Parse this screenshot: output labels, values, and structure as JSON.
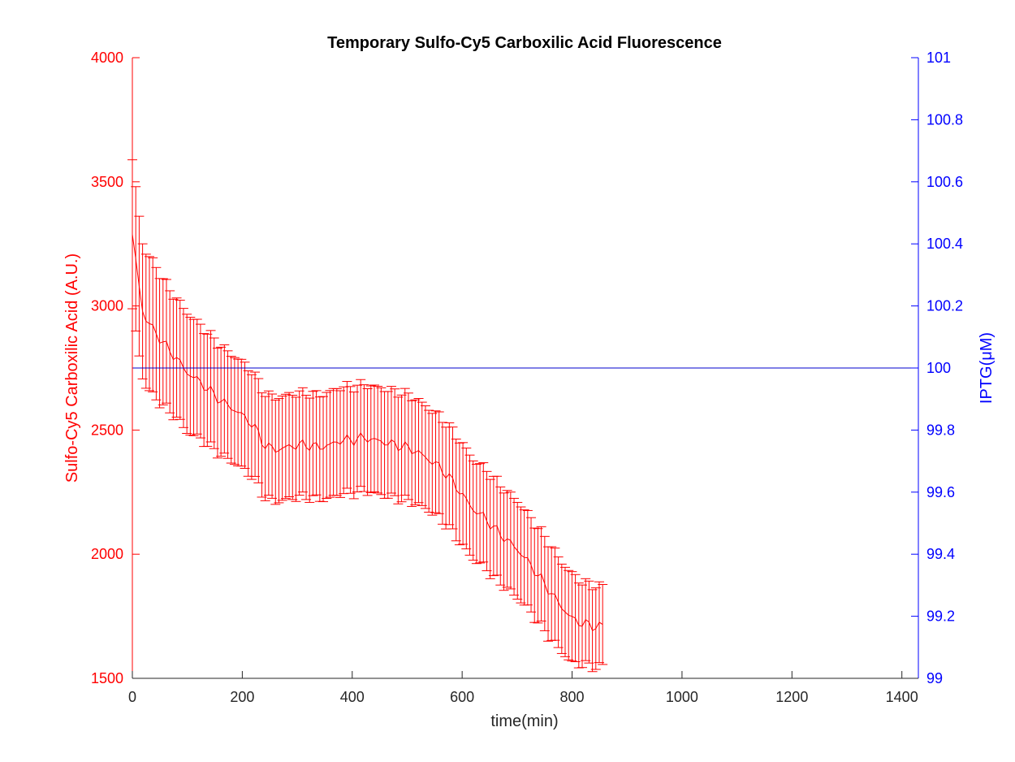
{
  "chart_data": {
    "type": "line",
    "title": "Temporary Sulfo-Cy5 Carboxilic Acid Fluorescence",
    "xlabel": "time(min)",
    "ylabel_left": "Sulfo-Cy5 Carboxilic Acid (A.U.)",
    "ylabel_right": "IPTG(μM)",
    "xlim": [
      0,
      1430
    ],
    "ylim_left": [
      1500,
      4000
    ],
    "ylim_right": [
      99,
      101
    ],
    "x_ticks": [
      0,
      200,
      400,
      600,
      800,
      1000,
      1200,
      1400
    ],
    "y_left_ticks": [
      1500,
      2000,
      2500,
      3000,
      3500,
      4000
    ],
    "y_right_ticks": [
      99,
      99.2,
      99.4,
      99.6,
      99.8,
      100,
      100.2,
      100.4,
      100.6,
      100.8,
      101
    ],
    "grid": false,
    "colors": {
      "left_axis": "#ff0000",
      "right_axis": "#0000ff",
      "fluorescence": "#ff0000",
      "iptg": "#0000cc"
    },
    "series": [
      {
        "axis": "left",
        "errorbars": true,
        "x": [
          0,
          20,
          40,
          60,
          80,
          100,
          120,
          140,
          160,
          180,
          200,
          220,
          240,
          260,
          280,
          300,
          320,
          340,
          360,
          380,
          400,
          420,
          440,
          460,
          480,
          500,
          520,
          540,
          560,
          580,
          600,
          620,
          640,
          660,
          680,
          700,
          720,
          740,
          760,
          780,
          800,
          820,
          840,
          860
        ],
        "values": [
          3280,
          2960,
          2900,
          2840,
          2790,
          2730,
          2700,
          2660,
          2620,
          2590,
          2560,
          2520,
          2440,
          2420,
          2430,
          2440,
          2440,
          2430,
          2440,
          2460,
          2460,
          2470,
          2460,
          2450,
          2440,
          2430,
          2410,
          2380,
          2350,
          2300,
          2240,
          2180,
          2150,
          2100,
          2060,
          2020,
          1970,
          1910,
          1850,
          1790,
          1740,
          1720,
          1710,
          1710
        ],
        "errors": [
          300,
          270,
          270,
          250,
          240,
          240,
          230,
          225,
          220,
          215,
          215,
          210,
          210,
          210,
          210,
          210,
          210,
          210,
          215,
          215,
          215,
          215,
          215,
          215,
          215,
          215,
          210,
          205,
          205,
          205,
          205,
          200,
          200,
          200,
          195,
          195,
          190,
          190,
          190,
          180,
          180,
          165,
          165,
          160
        ]
      },
      {
        "axis": "right",
        "x": [
          0,
          1430
        ],
        "values": [
          100,
          100
        ]
      }
    ]
  }
}
